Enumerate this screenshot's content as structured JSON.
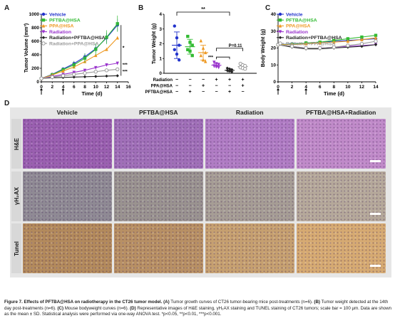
{
  "figure": {
    "panels": {
      "a": "A",
      "b": "B",
      "c": "C",
      "d": "D"
    },
    "caption": {
      "lead": "Figure 7. Effects of PFTBA@HSA on radiotherapy in the CT26 tumor model.",
      "a_tag": "(A)",
      "a_text": " Tumor growth curves of CT26 tumor-bearing mice post-treatments (n=6). ",
      "b_tag": "(B)",
      "b_text": " Tumor weight detected at the 14th day post-treatments (n=6). ",
      "c_tag": "(C)",
      "c_text": " Mouse bodyweight curves (n=6). ",
      "d_tag": "(D)",
      "d_text": " Representative images of H&E staining, γH₂AX staining and TUNEL staining of CT26 tumors; scale bar = 100 μm. Data are shown as the mean ± SD. Statistical analysis were performed via one-way ANOVA test. *p<0.05, **p<0.01, ***p<0.001."
    }
  },
  "chart_data": [
    {
      "type": "line",
      "panel": "A",
      "xlabel": "Time (d)",
      "ylabel": "Tumor Volume (mm³)",
      "xlim": [
        0,
        16
      ],
      "ylim": [
        0,
        1000
      ],
      "xticks": [
        0,
        2,
        4,
        6,
        8,
        10,
        12,
        14,
        16
      ],
      "yticks": [
        0,
        200,
        400,
        600,
        800,
        1000
      ],
      "x": [
        0,
        2,
        4,
        6,
        8,
        10,
        12,
        14
      ],
      "series": [
        {
          "name": "Vehicle",
          "color": "#2233cc",
          "values": [
            50,
            110,
            190,
            270,
            370,
            490,
            650,
            840
          ]
        },
        {
          "name": "PFTBA@HSA",
          "color": "#33bb33",
          "values": [
            50,
            105,
            180,
            250,
            350,
            480,
            660,
            860
          ]
        },
        {
          "name": "PPA@HSA",
          "color": "#ee9922",
          "values": [
            50,
            100,
            160,
            220,
            300,
            390,
            480,
            650
          ]
        },
        {
          "name": "Radiation",
          "color": "#9933cc",
          "values": [
            50,
            80,
            110,
            140,
            170,
            210,
            250,
            275
          ]
        },
        {
          "name": "Radiation+PFTBA@HSA",
          "color": "#222222",
          "values": [
            50,
            60,
            65,
            70,
            75,
            80,
            85,
            90
          ]
        },
        {
          "name": "Radiation+PPA@HSA",
          "color": "#999999",
          "values": [
            50,
            70,
            90,
            110,
            130,
            150,
            170,
            185
          ]
        }
      ],
      "significance": [
        "*",
        "***",
        "***"
      ]
    },
    {
      "type": "scatter",
      "panel": "B",
      "ylabel": "Tumor Weight (g)",
      "ylim": [
        0,
        4
      ],
      "yticks": [
        0,
        1,
        2,
        3,
        4
      ],
      "groups": [
        {
          "color": "#2233cc",
          "mean": 1.9,
          "sd": 0.9,
          "points": [
            3.2,
            2.4,
            1.9,
            1.6,
            1.3,
            0.9
          ]
        },
        {
          "color": "#33bb33",
          "mean": 1.8,
          "sd": 0.5,
          "points": [
            2.5,
            2.1,
            1.9,
            1.6,
            1.5,
            1.2
          ]
        },
        {
          "color": "#ee9922",
          "mean": 1.4,
          "sd": 0.5,
          "points": [
            2.2,
            1.7,
            1.4,
            1.2,
            0.9,
            0.8
          ]
        },
        {
          "color": "#9933cc",
          "mean": 0.55,
          "sd": 0.12,
          "points": [
            0.75,
            0.65,
            0.6,
            0.5,
            0.45,
            0.4
          ]
        },
        {
          "color": "#222222",
          "mean": 0.2,
          "sd": 0.1,
          "points": [
            0.35,
            0.3,
            0.25,
            0.2,
            0.15,
            0.1
          ]
        },
        {
          "color": "#999999",
          "mean": 0.45,
          "sd": 0.12,
          "points": [
            0.65,
            0.55,
            0.5,
            0.4,
            0.35,
            0.3
          ]
        }
      ],
      "treatment_rows": [
        {
          "label": "Radiation",
          "marks": [
            "−",
            "−",
            "−",
            "+",
            "+",
            "+"
          ]
        },
        {
          "label": "PPA@HSA",
          "marks": [
            "−",
            "−",
            "+",
            "−",
            "−",
            "+"
          ]
        },
        {
          "label": "PFTBA@HSA",
          "marks": [
            "−",
            "+",
            "−",
            "−",
            "+",
            "−"
          ]
        }
      ],
      "annotations": [
        "**",
        "P=0.11",
        "***"
      ]
    },
    {
      "type": "line",
      "panel": "C",
      "xlabel": "Time (d)",
      "ylabel": "Body Weight (g)",
      "xlim": [
        0,
        14
      ],
      "ylim": [
        0,
        40
      ],
      "xticks": [
        0,
        2,
        4,
        6,
        8,
        10,
        12,
        14
      ],
      "yticks": [
        0,
        10,
        20,
        30,
        40
      ],
      "x": [
        0,
        2,
        4,
        6,
        8,
        10,
        12,
        14
      ],
      "series": [
        {
          "name": "Vehicle",
          "color": "#2233cc",
          "values": [
            22,
            22.5,
            23,
            23.5,
            24,
            24.5,
            25,
            25.5
          ]
        },
        {
          "name": "PFTBA@HSA",
          "color": "#33bb33",
          "values": [
            22,
            22.3,
            23,
            23.5,
            24.5,
            25.5,
            26.5,
            27.5
          ]
        },
        {
          "name": "PPA@HSA",
          "color": "#ee9922",
          "values": [
            22,
            22,
            22.5,
            23,
            23.5,
            24,
            25,
            26
          ]
        },
        {
          "name": "Radiation",
          "color": "#9933cc",
          "values": [
            22,
            21,
            20,
            20,
            20.5,
            21,
            21.5,
            22
          ]
        },
        {
          "name": "Radiation+PFTBA@HSA",
          "color": "#222222",
          "values": [
            22,
            20.5,
            19.5,
            19.5,
            20,
            20.5,
            21,
            22
          ]
        },
        {
          "name": "Radiation+PPA@HSA",
          "color": "#999999",
          "values": [
            22,
            21,
            20,
            20,
            20.5,
            21.5,
            22.5,
            24
          ]
        }
      ]
    }
  ],
  "histology": {
    "columns": [
      "Vehicle",
      "PFTBA@HSA",
      "Radiation",
      "PFTBA@HSA+Radiation"
    ],
    "rows": [
      {
        "label": "H&E",
        "colors": [
          "#9a5fb0",
          "#a06fb8",
          "#b07cc4",
          "#c08ac9"
        ]
      },
      {
        "label": "γH₂AX",
        "colors": [
          "#8f8a94",
          "#9a9390",
          "#a69d95",
          "#b5a89a"
        ]
      },
      {
        "label": "Tunel",
        "colors": [
          "#b38a5c",
          "#b89064",
          "#c6a070",
          "#d6aa72"
        ]
      }
    ]
  }
}
